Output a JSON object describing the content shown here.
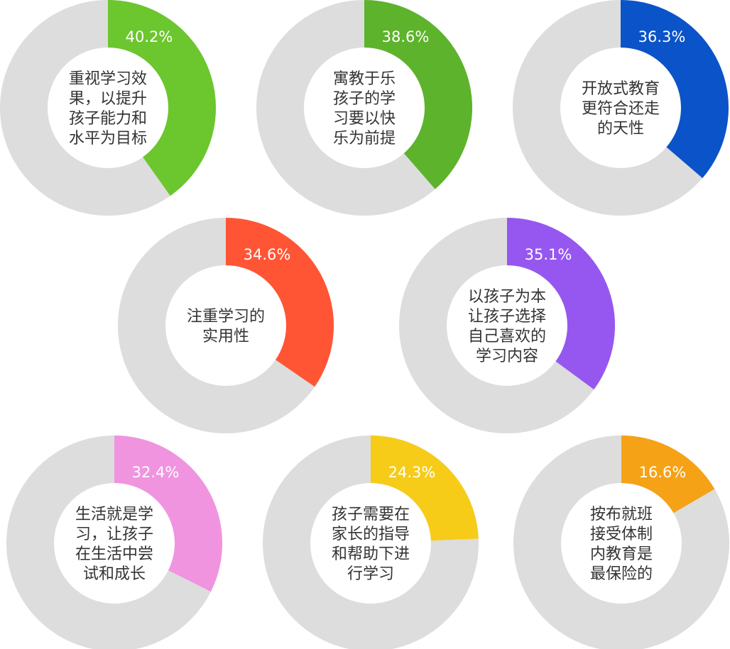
{
  "chart_data": [
    {
      "type": "pie",
      "percent_label": "40.2%",
      "value": 40.2,
      "label_lines": [
        "重视学习效",
        "果，以提升",
        "孩子能力和",
        "水平为目标"
      ],
      "color": "#6cc62e"
    },
    {
      "type": "pie",
      "percent_label": "38.6%",
      "value": 38.6,
      "label_lines": [
        "寓教于乐",
        "孩子的学",
        "习要以快",
        "乐为前提"
      ],
      "color": "#5db32b"
    },
    {
      "type": "pie",
      "percent_label": "36.3%",
      "value": 36.3,
      "label_lines": [
        "开放式教育",
        "更符合还走",
        "的天性"
      ],
      "color": "#0b53c8"
    },
    {
      "type": "pie",
      "percent_label": "34.6%",
      "value": 34.6,
      "label_lines": [
        "注重学习的",
        "实用性"
      ],
      "color": "#ff5535"
    },
    {
      "type": "pie",
      "percent_label": "35.1%",
      "value": 35.1,
      "label_lines": [
        "以孩子为本",
        "让孩子选择",
        "自己喜欢的",
        "学习内容"
      ],
      "color": "#9557f0"
    },
    {
      "type": "pie",
      "percent_label": "32.4%",
      "value": 32.4,
      "label_lines": [
        "生活就是学",
        "习，让孩子",
        "在生活中尝",
        "试和成长"
      ],
      "color": "#f094e0"
    },
    {
      "type": "pie",
      "percent_label": "24.3%",
      "value": 24.3,
      "label_lines": [
        "孩子需要在",
        "家长的指导",
        "和帮助下进",
        "行学习"
      ],
      "color": "#f6cc18"
    },
    {
      "type": "pie",
      "percent_label": "16.6%",
      "value": 16.6,
      "label_lines": [
        "按布就班",
        "接受体制",
        "内教育是",
        "最保险的"
      ],
      "color": "#f5a216"
    }
  ],
  "colors": {
    "remainder": "#dddddd",
    "hole": "#ffffff",
    "percent_text": "#ffffff",
    "label_text": "#333333"
  }
}
